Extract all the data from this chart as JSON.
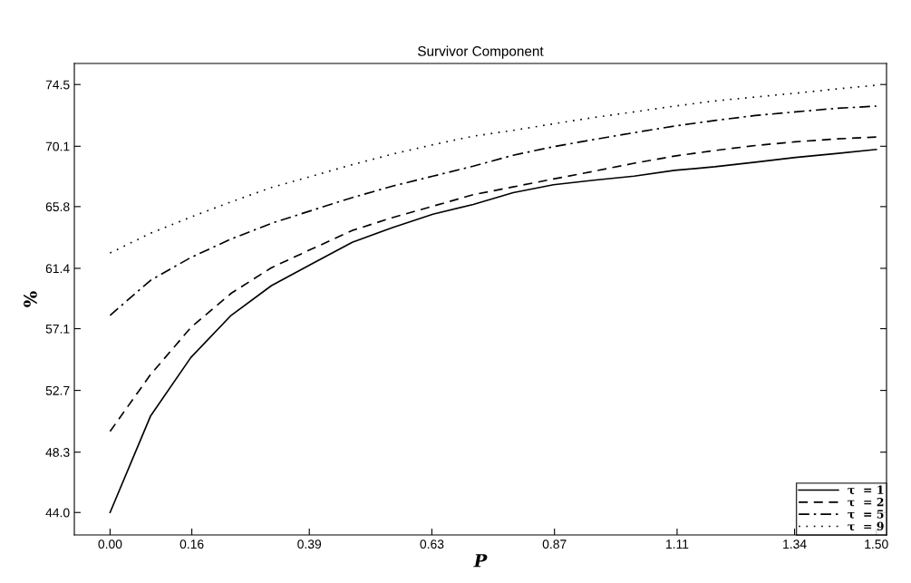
{
  "chart_data": {
    "type": "line",
    "title": "Survivor Component",
    "xlabel": "P",
    "ylabel": "%",
    "x": [
      0,
      0.079,
      0.158,
      0.237,
      0.316,
      0.395,
      0.474,
      0.553,
      0.632,
      0.711,
      0.789,
      0.868,
      0.947,
      1.026,
      1.105,
      1.184,
      1.263,
      1.342,
      1.421,
      1.5
    ],
    "series": [
      {
        "name": "τ  = 1",
        "color": "#000000",
        "line_style": "solid",
        "values": [
          44.0,
          50.86,
          55.04,
          58.05,
          60.17,
          61.72,
          63.25,
          64.31,
          65.26,
          65.95,
          66.79,
          67.36,
          67.68,
          67.97,
          68.38,
          68.64,
          68.97,
          69.3,
          69.58,
          69.87
        ]
      },
      {
        "name": "τ  = 2",
        "color": "#000000",
        "line_style": "dashed",
        "values": [
          49.78,
          53.82,
          57.18,
          59.62,
          61.45,
          62.78,
          64.1,
          65.02,
          65.83,
          66.65,
          67.2,
          67.77,
          68.32,
          68.89,
          69.4,
          69.8,
          70.15,
          70.42,
          70.62,
          70.76
        ]
      },
      {
        "name": "τ  = 5",
        "color": "#000000",
        "line_style": "dashdot",
        "values": [
          58.05,
          60.54,
          62.17,
          63.49,
          64.61,
          65.53,
          66.44,
          67.26,
          67.97,
          68.68,
          69.46,
          70.07,
          70.58,
          71.07,
          71.54,
          71.94,
          72.29,
          72.55,
          72.8,
          72.96
        ]
      },
      {
        "name": "τ  = 9",
        "color": "#000000",
        "line_style": "dotted",
        "values": [
          62.49,
          63.9,
          65.05,
          66.14,
          67.16,
          67.97,
          68.79,
          69.54,
          70.21,
          70.82,
          71.23,
          71.7,
          72.15,
          72.55,
          72.96,
          73.33,
          73.61,
          73.88,
          74.18,
          74.45
        ]
      }
    ],
    "xlim": [
      -0.07,
      1.52
    ],
    "ylim": [
      42.4,
      76.0
    ],
    "xticks": [
      {
        "value": 0,
        "label": "0.00"
      },
      {
        "value": 0.16,
        "label": "0.16"
      },
      {
        "value": 0.39,
        "label": "0.39"
      },
      {
        "value": 0.63,
        "label": "0.63"
      },
      {
        "value": 0.87,
        "label": "0.87"
      },
      {
        "value": 1.11,
        "label": "1.11"
      },
      {
        "value": 1.34,
        "label": "1.34"
      },
      {
        "value": 1.5,
        "label": "1.50"
      }
    ],
    "yticks": [
      {
        "value": 44.0,
        "label": "44.0"
      },
      {
        "value": 48.3,
        "label": "48.3"
      },
      {
        "value": 52.7,
        "label": "52.7"
      },
      {
        "value": 57.1,
        "label": "57.1"
      },
      {
        "value": 61.4,
        "label": "61.4"
      },
      {
        "value": 65.8,
        "label": "65.8"
      },
      {
        "value": 70.1,
        "label": "70.1"
      },
      {
        "value": 74.5,
        "label": "74.5"
      }
    ],
    "grid": false,
    "legend": "bottom right",
    "marker": "none"
  }
}
